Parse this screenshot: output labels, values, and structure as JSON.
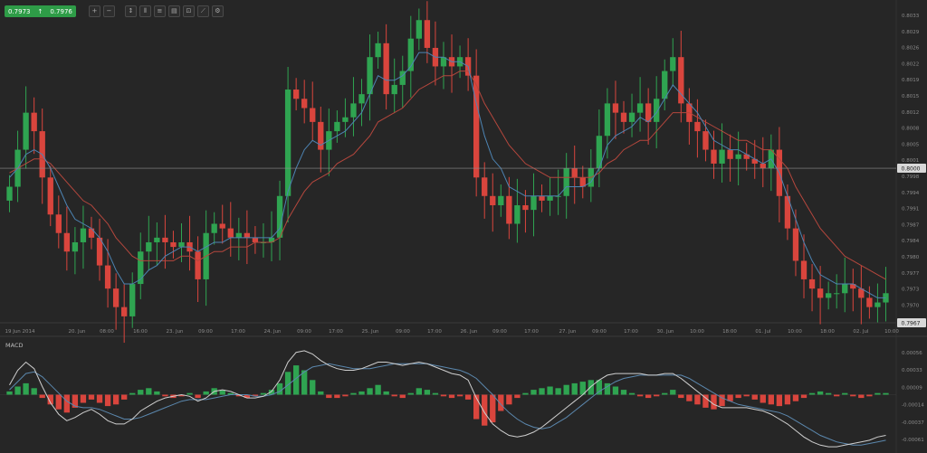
{
  "toolbar": {
    "bid": "0.7973",
    "ask": "0.7976",
    "buttons": [
      {
        "name": "zoom-in-icon",
        "glyph": "+"
      },
      {
        "name": "zoom-out-icon",
        "glyph": "−"
      },
      {
        "name": "crosshair-icon",
        "glyph": "↕"
      },
      {
        "name": "candles-icon",
        "glyph": "⫴"
      },
      {
        "name": "indicators-icon",
        "glyph": "≡"
      },
      {
        "name": "objects-icon",
        "glyph": "▤"
      },
      {
        "name": "template-icon",
        "glyph": "⊡"
      },
      {
        "name": "draw-icon",
        "glyph": "⟋"
      },
      {
        "name": "settings-icon",
        "glyph": "⚙"
      }
    ]
  },
  "colors": {
    "background": "#262626",
    "bull": "#2fa451",
    "bear": "#d9453d",
    "fast_ma": "#4d84b3",
    "slow_ma": "#b5473d",
    "macd_line": "#cfcfcf",
    "signal_line": "#5b87ad"
  },
  "chart_data": [
    {
      "type": "candlestick",
      "title": "",
      "current_price": "0.8000",
      "last_price": "0.7967",
      "ylim": [
        0.7967,
        0.8034
      ],
      "y_ticks": [
        "0.8033",
        "0.8029",
        "0.8026",
        "0.8022",
        "0.8019",
        "0.8015",
        "0.8012",
        "0.8008",
        "0.8005",
        "0.8001",
        "0.7998",
        "0.7994",
        "0.7991",
        "0.7987",
        "0.7984",
        "0.7980",
        "0.7977",
        "0.7973",
        "0.7970"
      ],
      "x_ticks": [
        "19 Jun 2014",
        "20. Jun",
        "08:00",
        "16:00",
        "23. Jun",
        "09:00",
        "17:00",
        "24. Jun",
        "09:00",
        "17:00",
        "25. Jun",
        "09:00",
        "17:00",
        "26. Jun",
        "09:00",
        "17:00",
        "27. Jun",
        "09:00",
        "17:00",
        "30. Jun",
        "10:00",
        "18:00",
        "01. Jul",
        "10:00",
        "18:00",
        "02. Jul",
        "10:00"
      ],
      "close_path": [
        0.7996,
        0.8004,
        0.8012,
        0.8008,
        0.7998,
        0.799,
        0.7986,
        0.7982,
        0.7984,
        0.7987,
        0.7985,
        0.7979,
        0.7974,
        0.797,
        0.7968,
        0.7975,
        0.7982,
        0.7984,
        0.7985,
        0.7984,
        0.7983,
        0.7984,
        0.7982,
        0.7976,
        0.7986,
        0.7988,
        0.7987,
        0.7985,
        0.7986,
        0.7985,
        0.7984,
        0.7984,
        0.7985,
        0.7994,
        0.8017,
        0.8015,
        0.8013,
        0.801,
        0.8004,
        0.8008,
        0.801,
        0.8011,
        0.8014,
        0.8016,
        0.8024,
        0.8027,
        0.8016,
        0.8018,
        0.8021,
        0.8028,
        0.8032,
        0.8026,
        0.8022,
        0.8024,
        0.8022,
        0.8024,
        0.802,
        0.7998,
        0.7994,
        0.7992,
        0.7994,
        0.7988,
        0.7992,
        0.7991,
        0.7994,
        0.7993,
        0.7994,
        0.7994,
        0.8,
        0.7998,
        0.7996,
        0.8,
        0.8007,
        0.8014,
        0.8012,
        0.801,
        0.8012,
        0.8014,
        0.801,
        0.8015,
        0.8021,
        0.8024,
        0.8014,
        0.801,
        0.8008,
        0.8004,
        0.8001,
        0.8004,
        0.8002,
        0.8003,
        0.8002,
        0.8001,
        0.8,
        0.8004,
        0.7994,
        0.7987,
        0.798,
        0.7976,
        0.7974,
        0.7972,
        0.7973,
        0.7973,
        0.7975,
        0.7974,
        0.7972,
        0.797,
        0.7971,
        0.7973
      ],
      "fast_ma": [
        0.7998,
        0.8,
        0.8003,
        0.8004,
        0.8003,
        0.8,
        0.7996,
        0.7992,
        0.7989,
        0.7988,
        0.7987,
        0.7985,
        0.7982,
        0.7978,
        0.7975,
        0.7975,
        0.7976,
        0.7978,
        0.7979,
        0.7981,
        0.7982,
        0.7983,
        0.7983,
        0.7982,
        0.7983,
        0.7984,
        0.7984,
        0.7985,
        0.7985,
        0.7985,
        0.7985,
        0.7985,
        0.7985,
        0.7987,
        0.7995,
        0.8,
        0.8004,
        0.8006,
        0.8005,
        0.8006,
        0.8007,
        0.8008,
        0.801,
        0.8012,
        0.8016,
        0.802,
        0.8019,
        0.8019,
        0.802,
        0.8022,
        0.8025,
        0.8025,
        0.8024,
        0.8024,
        0.8023,
        0.8023,
        0.8022,
        0.8014,
        0.8007,
        0.8002,
        0.8,
        0.7996,
        0.7995,
        0.7994,
        0.7994,
        0.7994,
        0.7994,
        0.7994,
        0.7996,
        0.7996,
        0.7996,
        0.7997,
        0.8,
        0.8005,
        0.8007,
        0.8008,
        0.8009,
        0.8011,
        0.801,
        0.8012,
        0.8015,
        0.8018,
        0.8016,
        0.8014,
        0.8012,
        0.8009,
        0.8006,
        0.8005,
        0.8004,
        0.8004,
        0.8003,
        0.8002,
        0.8001,
        0.8002,
        0.7999,
        0.7994,
        0.7989,
        0.7984,
        0.798,
        0.7977,
        0.7976,
        0.7975,
        0.7975,
        0.7975,
        0.7974,
        0.7973,
        0.7972,
        0.7972
      ],
      "slow_ma": [
        0.7999,
        0.8,
        0.8001,
        0.8002,
        0.8002,
        0.8001,
        0.7999,
        0.7997,
        0.7995,
        0.7993,
        0.7992,
        0.799,
        0.7988,
        0.7985,
        0.7983,
        0.7981,
        0.798,
        0.798,
        0.798,
        0.798,
        0.798,
        0.7981,
        0.7981,
        0.798,
        0.7981,
        0.7982,
        0.7982,
        0.7983,
        0.7983,
        0.7983,
        0.7984,
        0.7984,
        0.7984,
        0.7985,
        0.7989,
        0.7992,
        0.7995,
        0.7997,
        0.7998,
        0.7999,
        0.8001,
        0.8002,
        0.8003,
        0.8005,
        0.8007,
        0.801,
        0.8011,
        0.8012,
        0.8013,
        0.8015,
        0.8017,
        0.8018,
        0.8019,
        0.802,
        0.802,
        0.8021,
        0.8021,
        0.8018,
        0.8014,
        0.8011,
        0.8008,
        0.8005,
        0.8003,
        0.8001,
        0.8,
        0.7999,
        0.7998,
        0.7998,
        0.7998,
        0.7998,
        0.7998,
        0.7998,
        0.7999,
        0.8001,
        0.8002,
        0.8004,
        0.8005,
        0.8006,
        0.8006,
        0.8008,
        0.801,
        0.8012,
        0.8012,
        0.8012,
        0.8011,
        0.801,
        0.8009,
        0.8008,
        0.8007,
        0.8006,
        0.8006,
        0.8005,
        0.8004,
        0.8004,
        0.8002,
        0.8,
        0.7996,
        0.7993,
        0.799,
        0.7987,
        0.7985,
        0.7983,
        0.7981,
        0.798,
        0.7979,
        0.7978,
        0.7977,
        0.7976
      ]
    },
    {
      "type": "bar",
      "title": "MACD",
      "ylim": [
        -0.00065,
        0.00065
      ],
      "y_ticks": [
        "0.00056",
        "0.00033",
        "0.00009",
        "-0.00014",
        "-0.00037",
        "-0.00061"
      ],
      "histogram": [
        4e-05,
        0.0001,
        0.00014,
        8e-05,
        -4e-05,
        -0.00012,
        -0.00018,
        -0.00022,
        -0.00016,
        -0.0001,
        -6e-05,
        -0.0001,
        -0.00014,
        -0.00012,
        -6e-05,
        2e-05,
        6e-05,
        8e-05,
        4e-05,
        -2e-05,
        -4e-05,
        -2e-05,
        2e-05,
        -4e-05,
        4e-05,
        8e-05,
        6e-05,
        2e-05,
        -2e-05,
        -4e-05,
        -2e-05,
        2e-05,
        6e-05,
        0.00014,
        0.00028,
        0.00036,
        0.0003,
        0.00018,
        4e-05,
        -4e-05,
        -4e-05,
        -2e-05,
        2e-05,
        4e-05,
        8e-05,
        0.00012,
        4e-05,
        -2e-05,
        -4e-05,
        2e-05,
        8e-05,
        6e-05,
        2e-05,
        -2e-05,
        -4e-05,
        -2e-05,
        -6e-05,
        -0.0003,
        -0.00038,
        -0.00034,
        -0.0002,
        -0.00012,
        -4e-05,
        2e-05,
        6e-05,
        8e-05,
        0.0001,
        8e-05,
        0.00012,
        0.00014,
        0.00016,
        0.00018,
        0.00018,
        0.00014,
        0.0001,
        6e-05,
        2e-05,
        -2e-05,
        -4e-05,
        -2e-05,
        2e-05,
        6e-05,
        -4e-05,
        -8e-05,
        -0.00012,
        -0.00016,
        -0.00018,
        -0.00014,
        -8e-05,
        -4e-05,
        -2e-05,
        -6e-05,
        -0.0001,
        -0.00012,
        -0.00014,
        -0.00012,
        -8e-05,
        -4e-05,
        2e-05,
        4e-05,
        2e-05,
        -2e-05,
        2e-05,
        -2e-05,
        -4e-05,
        -2e-05,
        2e-05,
        2e-05
      ],
      "macd_line": [
        0.00012,
        0.0003,
        0.0004,
        0.00032,
        0.0001,
        -0.0001,
        -0.00024,
        -0.00032,
        -0.00028,
        -0.00022,
        -0.00018,
        -0.00024,
        -0.00032,
        -0.00036,
        -0.00036,
        -0.0003,
        -0.0002,
        -0.00014,
        -8e-05,
        -4e-05,
        -2e-05,
        0.0,
        -2e-05,
        -8e-05,
        -4e-05,
        4e-05,
        6e-05,
        4e-05,
        0.0,
        -4e-05,
        -4e-05,
        -2e-05,
        4e-05,
        0.00018,
        0.0004,
        0.00052,
        0.00054,
        0.0005,
        0.00042,
        0.00036,
        0.00032,
        0.0003,
        0.0003,
        0.00032,
        0.00036,
        0.0004,
        0.0004,
        0.00038,
        0.00036,
        0.00038,
        0.0004,
        0.00038,
        0.00034,
        0.0003,
        0.00026,
        0.00024,
        0.00018,
        -4e-05,
        -0.00022,
        -0.00036,
        -0.00044,
        -0.0005,
        -0.00052,
        -0.0005,
        -0.00046,
        -0.0004,
        -0.00032,
        -0.00024,
        -0.00016,
        -8e-05,
        0.0,
        0.0001,
        0.00018,
        0.00024,
        0.00026,
        0.00026,
        0.00026,
        0.00026,
        0.00024,
        0.00024,
        0.00026,
        0.00026,
        0.0002,
        0.00012,
        4e-05,
        -4e-05,
        -0.00012,
        -0.00016,
        -0.00016,
        -0.00016,
        -0.00016,
        -0.00018,
        -0.0002,
        -0.00024,
        -0.0003,
        -0.00036,
        -0.00044,
        -0.00052,
        -0.00058,
        -0.00062,
        -0.00064,
        -0.00064,
        -0.00062,
        -0.0006,
        -0.00058,
        -0.00056,
        -0.00052,
        -0.0005
      ],
      "signal_line": [
        6e-05,
        0.00016,
        0.00026,
        0.00028,
        0.00022,
        0.00012,
        2e-05,
        -8e-05,
        -0.00014,
        -0.00016,
        -0.00016,
        -0.00018,
        -0.00022,
        -0.00026,
        -0.0003,
        -0.0003,
        -0.00028,
        -0.00024,
        -0.0002,
        -0.00016,
        -0.00012,
        -8e-05,
        -6e-05,
        -6e-05,
        -6e-05,
        -4e-05,
        -2e-05,
        0.0,
        0.0,
        0.0,
        -2e-05,
        -2e-05,
        0.0,
        4e-05,
        0.00012,
        0.0002,
        0.00028,
        0.00034,
        0.00036,
        0.00038,
        0.00036,
        0.00034,
        0.00032,
        0.00032,
        0.00032,
        0.00034,
        0.00036,
        0.00038,
        0.00038,
        0.00038,
        0.00038,
        0.00038,
        0.00036,
        0.00034,
        0.00032,
        0.0003,
        0.00026,
        0.0002,
        0.0001,
        0.0,
        -0.00012,
        -0.00022,
        -0.0003,
        -0.00036,
        -0.0004,
        -0.00042,
        -0.0004,
        -0.00034,
        -0.00028,
        -0.0002,
        -0.00012,
        -4e-05,
        4e-05,
        0.0001,
        0.00016,
        0.0002,
        0.00022,
        0.00024,
        0.00024,
        0.00024,
        0.00024,
        0.00024,
        0.00024,
        0.0002,
        0.00014,
        8e-05,
        2e-05,
        -4e-05,
        -8e-05,
        -0.00012,
        -0.00014,
        -0.00016,
        -0.00018,
        -0.0002,
        -0.00022,
        -0.00026,
        -0.00032,
        -0.00038,
        -0.00044,
        -0.0005,
        -0.00054,
        -0.00058,
        -0.0006,
        -0.00062,
        -0.00062,
        -0.0006,
        -0.00058,
        -0.00056
      ]
    }
  ]
}
